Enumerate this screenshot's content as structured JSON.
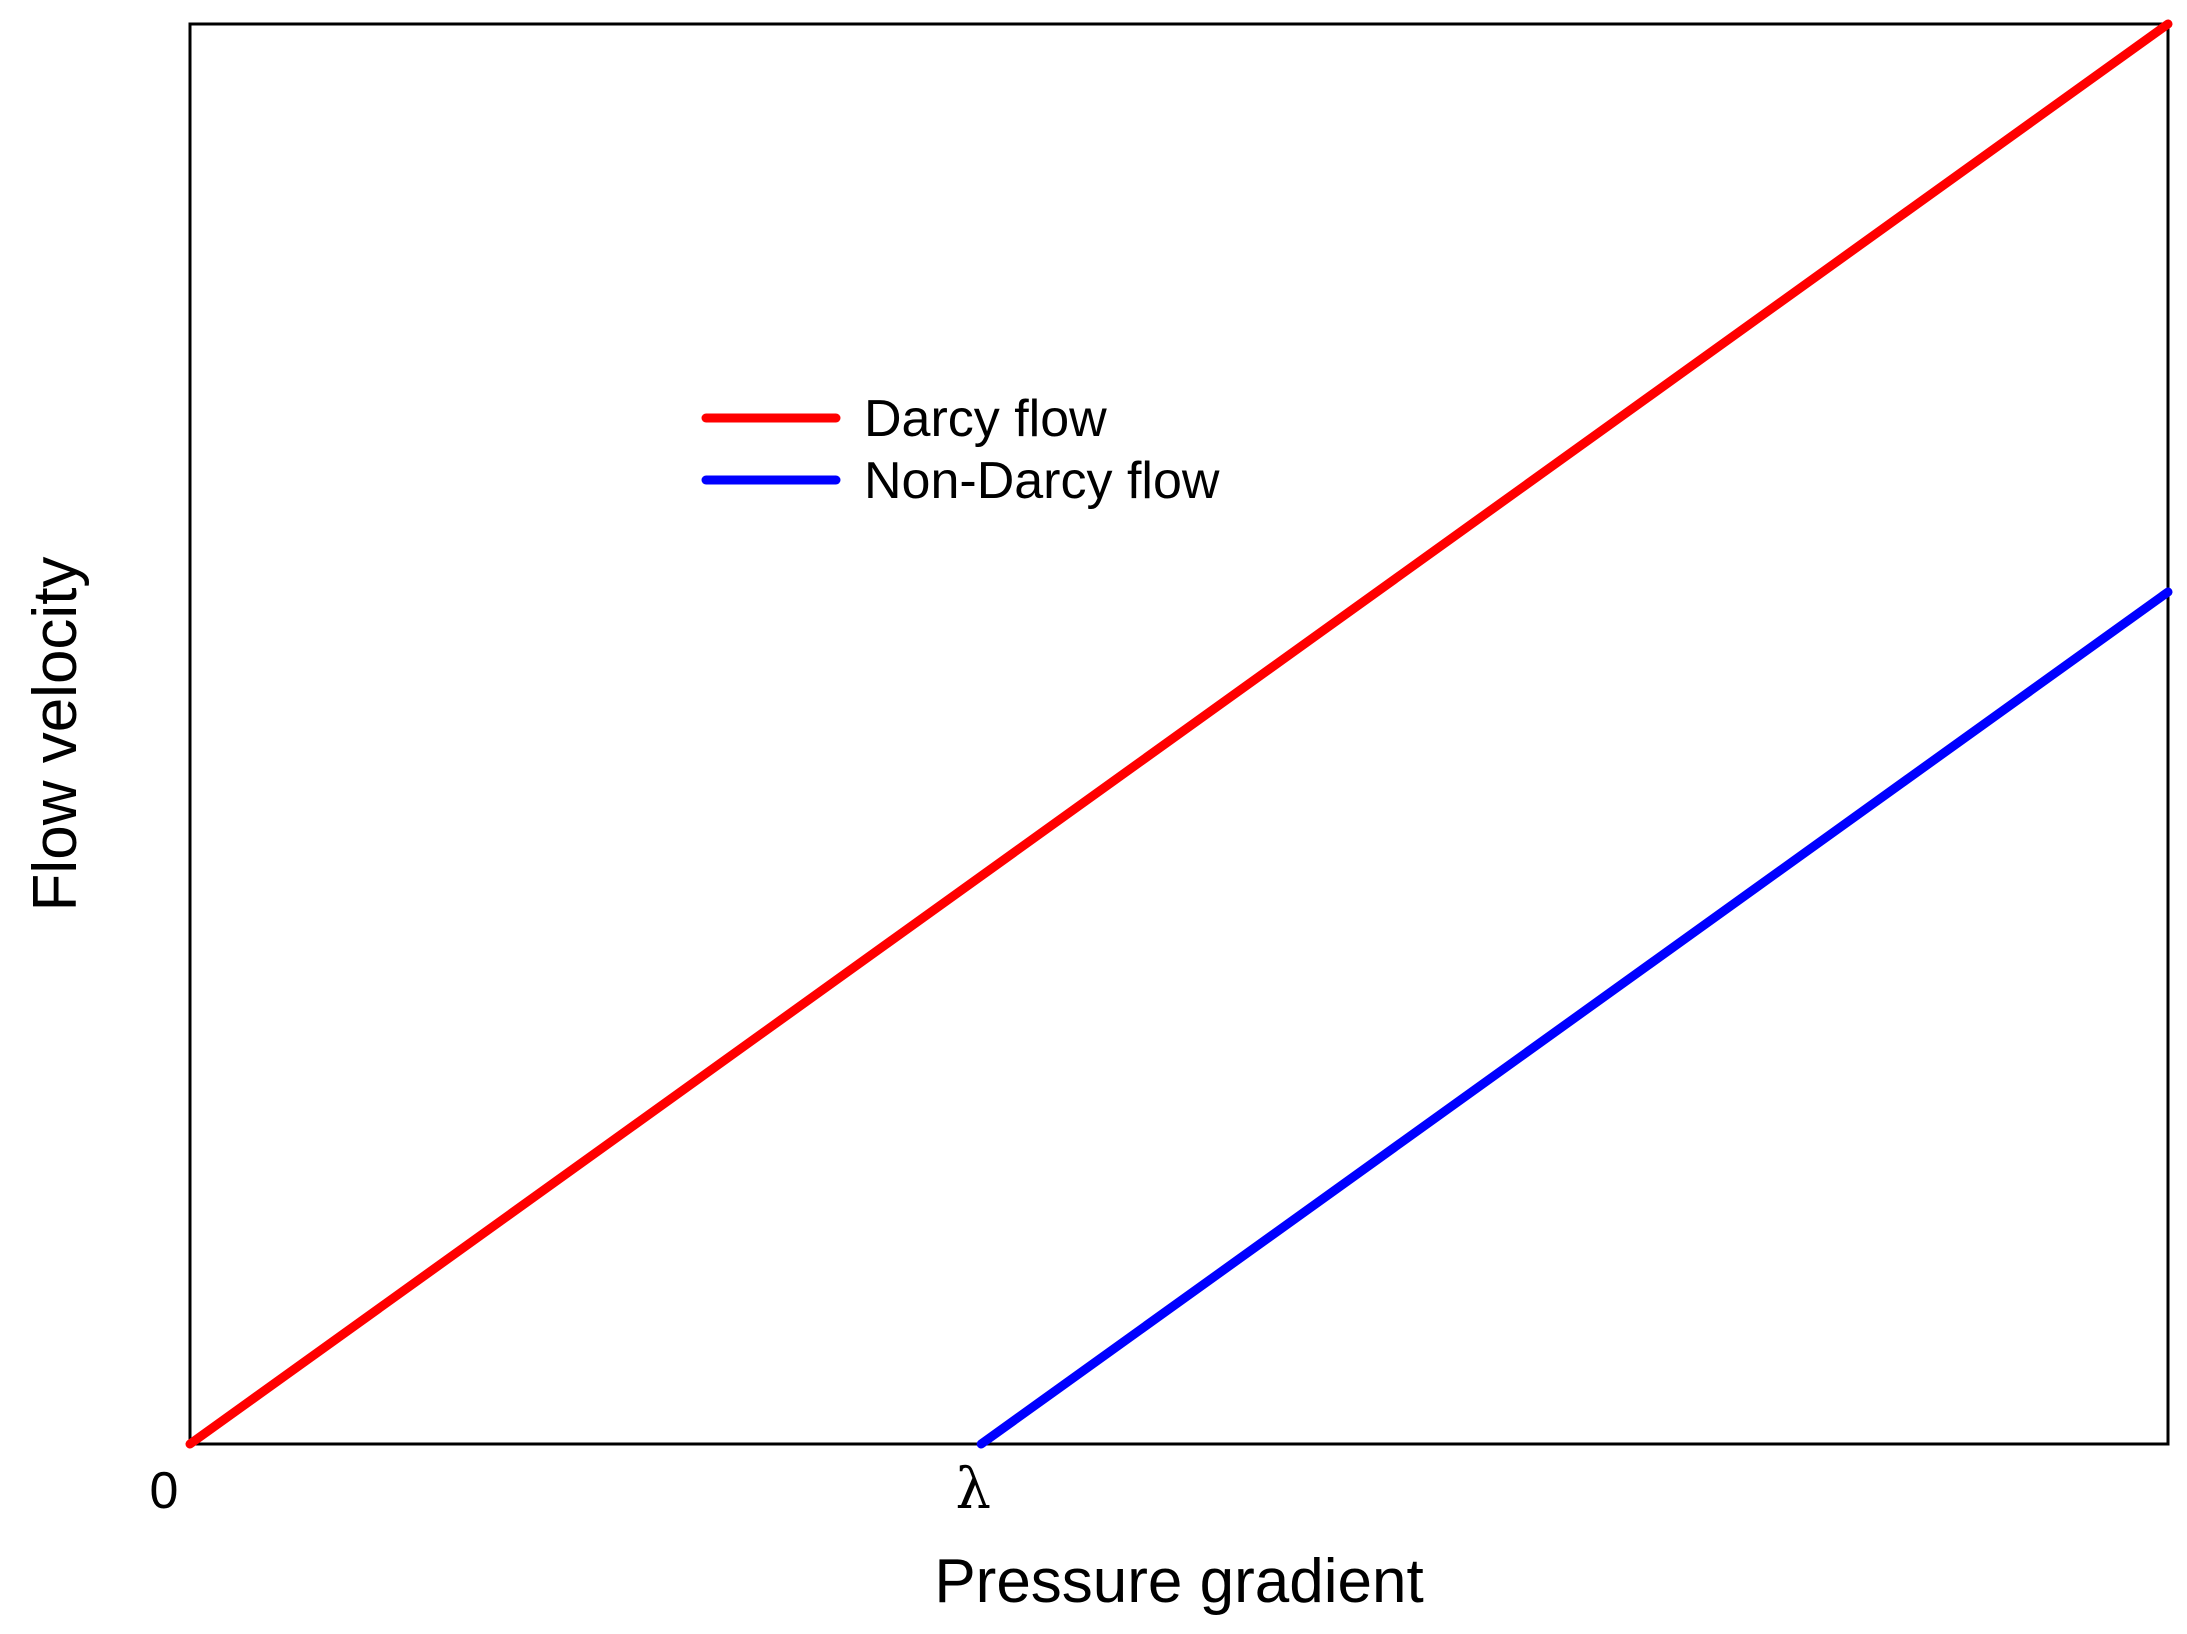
{
  "chart_data": {
    "type": "line",
    "title": "",
    "xlabel": "Pressure gradient",
    "ylabel": "Flow velocity",
    "xlim": [
      0,
      2.5
    ],
    "ylim": [
      0,
      2.5
    ],
    "x_ticks": [
      {
        "value": 0,
        "label": "0"
      },
      {
        "value": 1,
        "label": "λ"
      }
    ],
    "grid": false,
    "legend_position": "upper-center-left",
    "series": [
      {
        "name": "Darcy flow",
        "color": "#ff0000",
        "x": [
          0,
          2.5
        ],
        "y": [
          0,
          2.5
        ]
      },
      {
        "name": "Non-Darcy flow",
        "color": "#0000ff",
        "x": [
          1,
          2.5
        ],
        "y": [
          0,
          1.5
        ]
      }
    ]
  }
}
